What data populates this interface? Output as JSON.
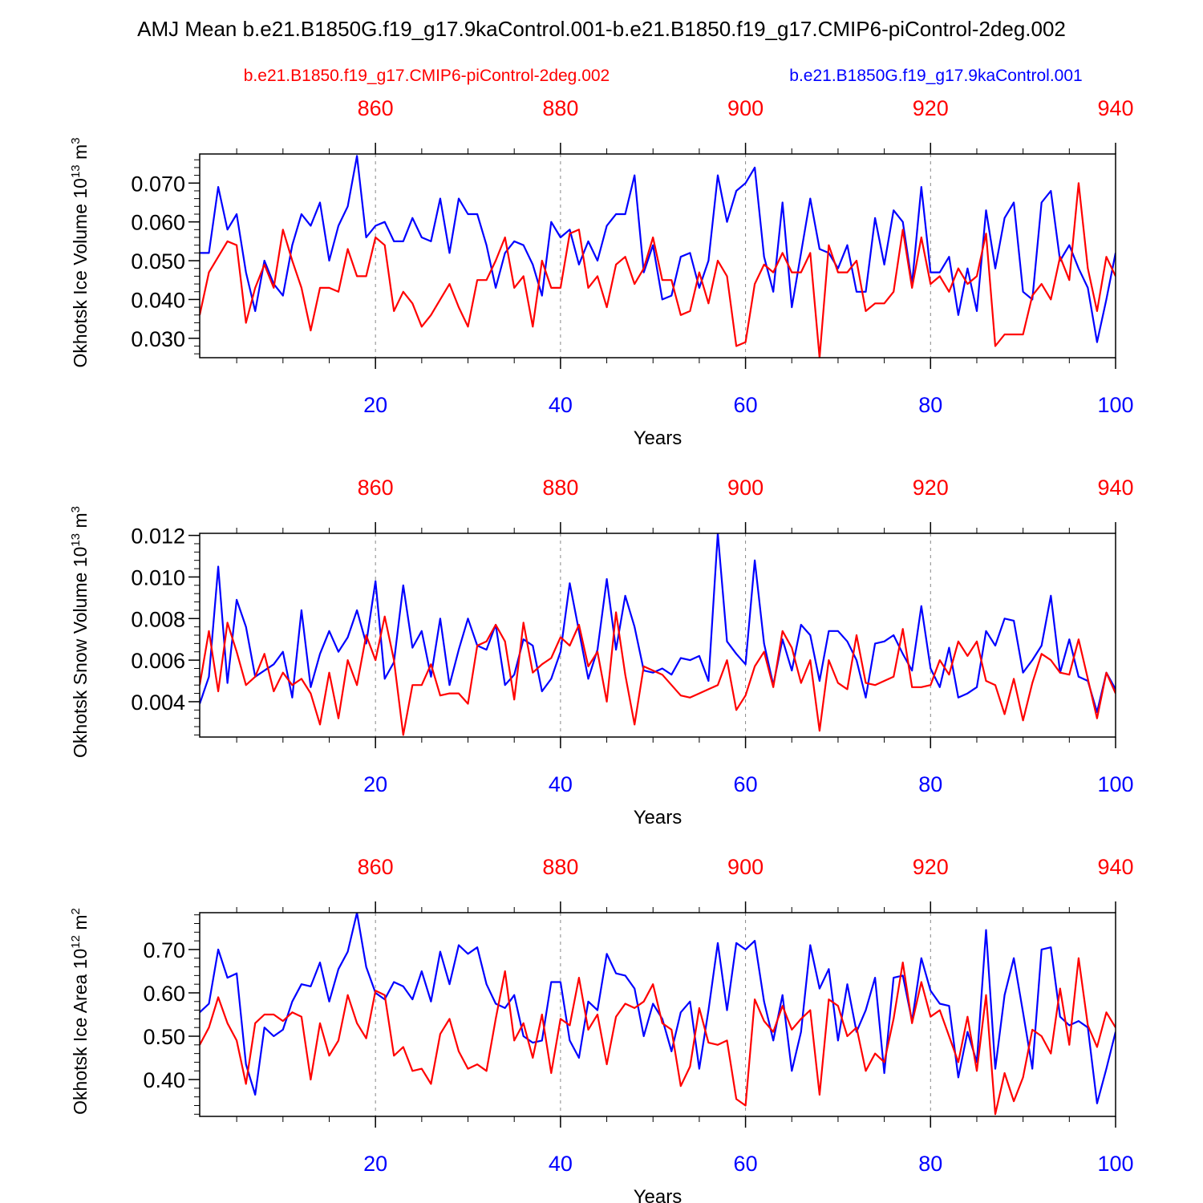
{
  "title": "AMJ Mean b.e21.B1850G.f19_g17.9kaControl.001-b.e21.B1850.f19_g17.CMIP6-piControl-2deg.002",
  "legend": {
    "red_label": "b.e21.B1850.f19_g17.CMIP6-piControl-2deg.002",
    "blue_label": "b.e21.B1850G.f19_g17.9kaControl.001"
  },
  "colors": {
    "red": "#ff0000",
    "blue": "#0000ff",
    "axis": "#000000",
    "grid": "#888888"
  },
  "chart_data": [
    {
      "type": "line",
      "id": "ice-volume",
      "ylabel": "Okhotsk Ice Volume 10",
      "ylabel_exp": "13",
      "ylabel_unit": " m",
      "ylabel_unit_exp": "3",
      "xlabel": "Years",
      "xlim": [
        1,
        100
      ],
      "ylim": [
        0.025,
        0.0775
      ],
      "yticks": [
        0.03,
        0.04,
        0.05,
        0.06,
        0.07
      ],
      "ytick_labels": [
        "0.030",
        "0.040",
        "0.050",
        "0.060",
        "0.070"
      ],
      "yminor_step": 0.002,
      "xticks": [
        20,
        40,
        60,
        80,
        100
      ],
      "xtick_labels": [
        "20",
        "40",
        "60",
        "80",
        "100"
      ],
      "top_xticks": [
        860,
        880,
        900,
        920,
        940
      ],
      "top_xtick_labels": [
        "860",
        "880",
        "900",
        "920",
        "940"
      ],
      "top_offset": 840,
      "series": [
        {
          "name": "b.e21.B1850G.f19_g17.9kaControl.001",
          "color": "blue",
          "values": [
            0.052,
            0.052,
            0.069,
            0.058,
            0.062,
            0.047,
            0.037,
            0.05,
            0.044,
            0.041,
            0.054,
            0.062,
            0.059,
            0.065,
            0.05,
            0.059,
            0.064,
            0.077,
            0.056,
            0.059,
            0.06,
            0.055,
            0.055,
            0.061,
            0.056,
            0.055,
            0.066,
            0.052,
            0.066,
            0.062,
            0.062,
            0.054,
            0.043,
            0.052,
            0.055,
            0.054,
            0.049,
            0.041,
            0.06,
            0.056,
            0.058,
            0.049,
            0.055,
            0.05,
            0.059,
            0.062,
            0.062,
            0.072,
            0.047,
            0.054,
            0.04,
            0.041,
            0.051,
            0.052,
            0.043,
            0.05,
            0.072,
            0.06,
            0.068,
            0.07,
            0.074,
            0.051,
            0.042,
            0.065,
            0.038,
            0.052,
            0.066,
            0.053,
            0.052,
            0.048,
            0.054,
            0.042,
            0.042,
            0.061,
            0.049,
            0.063,
            0.06,
            0.044,
            0.069,
            0.047,
            0.047,
            0.051,
            0.036,
            0.048,
            0.037,
            0.063,
            0.048,
            0.061,
            0.065,
            0.042,
            0.04,
            0.065,
            0.068,
            0.05,
            0.054,
            0.048,
            0.043,
            0.029,
            0.04,
            0.052
          ]
        },
        {
          "name": "b.e21.B1850.f19_g17.CMIP6-piControl-2deg.002",
          "color": "red",
          "values": [
            0.036,
            0.047,
            0.051,
            0.055,
            0.054,
            0.034,
            0.043,
            0.049,
            0.043,
            0.058,
            0.05,
            0.043,
            0.032,
            0.043,
            0.043,
            0.042,
            0.053,
            0.046,
            0.046,
            0.056,
            0.054,
            0.037,
            0.042,
            0.039,
            0.033,
            0.036,
            0.04,
            0.044,
            0.038,
            0.033,
            0.045,
            0.045,
            0.05,
            0.056,
            0.043,
            0.046,
            0.033,
            0.05,
            0.043,
            0.043,
            0.057,
            0.058,
            0.043,
            0.046,
            0.038,
            0.049,
            0.051,
            0.044,
            0.048,
            0.056,
            0.045,
            0.045,
            0.036,
            0.037,
            0.047,
            0.039,
            0.05,
            0.046,
            0.028,
            0.029,
            0.044,
            0.049,
            0.047,
            0.052,
            0.047,
            0.047,
            0.052,
            0.025,
            0.054,
            0.047,
            0.047,
            0.05,
            0.037,
            0.039,
            0.039,
            0.042,
            0.058,
            0.043,
            0.056,
            0.044,
            0.046,
            0.042,
            0.048,
            0.044,
            0.046,
            0.057,
            0.028,
            0.031,
            0.031,
            0.031,
            0.041,
            0.044,
            0.04,
            0.051,
            0.045,
            0.07,
            0.048,
            0.037,
            0.051,
            0.046
          ]
        }
      ]
    },
    {
      "type": "line",
      "id": "snow-volume",
      "ylabel": "Okhotsk Snow Volume 10",
      "ylabel_exp": "13",
      "ylabel_unit": " m",
      "ylabel_unit_exp": "3",
      "xlabel": "Years",
      "xlim": [
        1,
        100
      ],
      "ylim": [
        0.0023,
        0.0121
      ],
      "yticks": [
        0.004,
        0.006,
        0.008,
        0.01,
        0.012
      ],
      "ytick_labels": [
        "0.004",
        "0.006",
        "0.008",
        "0.010",
        "0.012"
      ],
      "yminor_step": 0.0004,
      "xticks": [
        20,
        40,
        60,
        80,
        100
      ],
      "xtick_labels": [
        "20",
        "40",
        "60",
        "80",
        "100"
      ],
      "top_xticks": [
        860,
        880,
        900,
        920,
        940
      ],
      "top_xtick_labels": [
        "860",
        "880",
        "900",
        "920",
        "940"
      ],
      "top_offset": 840,
      "series": [
        {
          "name": "b.e21.B1850G.f19_g17.9kaControl.001",
          "color": "blue",
          "values": [
            0.0039,
            0.0052,
            0.0105,
            0.0049,
            0.0089,
            0.0076,
            0.0052,
            0.0055,
            0.0058,
            0.0064,
            0.0042,
            0.0084,
            0.0047,
            0.0063,
            0.0074,
            0.0064,
            0.0071,
            0.0084,
            0.0068,
            0.0098,
            0.0051,
            0.0059,
            0.0096,
            0.0066,
            0.0074,
            0.0052,
            0.008,
            0.0048,
            0.0065,
            0.008,
            0.0067,
            0.0065,
            0.0077,
            0.0048,
            0.0053,
            0.007,
            0.0067,
            0.0045,
            0.0051,
            0.0064,
            0.0097,
            0.0074,
            0.0051,
            0.0065,
            0.0099,
            0.0065,
            0.0091,
            0.0076,
            0.0055,
            0.0054,
            0.0056,
            0.0053,
            0.0061,
            0.006,
            0.0062,
            0.005,
            0.0121,
            0.0069,
            0.0063,
            0.0058,
            0.0108,
            0.0068,
            0.0048,
            0.007,
            0.0055,
            0.0077,
            0.0072,
            0.005,
            0.0074,
            0.0074,
            0.0069,
            0.006,
            0.0042,
            0.0068,
            0.0069,
            0.0072,
            0.0063,
            0.0055,
            0.0086,
            0.0056,
            0.0047,
            0.0066,
            0.0042,
            0.0044,
            0.0047,
            0.0074,
            0.0067,
            0.008,
            0.0079,
            0.0054,
            0.006,
            0.0067,
            0.0091,
            0.0054,
            0.007,
            0.0052,
            0.005,
            0.0035,
            0.0054,
            0.0046
          ]
        },
        {
          "name": "b.e21.B1850.f19_g17.CMIP6-piControl-2deg.002",
          "color": "red",
          "values": [
            0.0048,
            0.0074,
            0.0045,
            0.0078,
            0.0064,
            0.0048,
            0.0052,
            0.0063,
            0.0045,
            0.0054,
            0.0048,
            0.0051,
            0.0044,
            0.0029,
            0.0054,
            0.0032,
            0.006,
            0.0048,
            0.0072,
            0.006,
            0.0081,
            0.006,
            0.0024,
            0.0048,
            0.0048,
            0.0058,
            0.0043,
            0.0044,
            0.0044,
            0.0039,
            0.0067,
            0.0069,
            0.0077,
            0.0069,
            0.0041,
            0.0078,
            0.0054,
            0.0058,
            0.0061,
            0.0071,
            0.0067,
            0.0077,
            0.0057,
            0.0064,
            0.004,
            0.0083,
            0.0053,
            0.0029,
            0.0057,
            0.0055,
            0.0053,
            0.0048,
            0.0043,
            0.0042,
            0.0044,
            0.0046,
            0.0048,
            0.006,
            0.0036,
            0.0043,
            0.0057,
            0.0064,
            0.0047,
            0.0074,
            0.0066,
            0.0049,
            0.006,
            0.0026,
            0.006,
            0.0049,
            0.0046,
            0.0072,
            0.0049,
            0.0048,
            0.005,
            0.0052,
            0.0075,
            0.0047,
            0.0047,
            0.0048,
            0.006,
            0.0053,
            0.0069,
            0.0062,
            0.0069,
            0.005,
            0.0048,
            0.0034,
            0.0051,
            0.0031,
            0.0049,
            0.0063,
            0.006,
            0.0054,
            0.0053,
            0.007,
            0.0051,
            0.0032,
            0.0054,
            0.0044
          ]
        }
      ]
    },
    {
      "type": "line",
      "id": "ice-area",
      "ylabel": "Okhotsk Ice Area 10",
      "ylabel_exp": "12",
      "ylabel_unit": " m",
      "ylabel_unit_exp": "2",
      "xlabel": "Years",
      "xlim": [
        1,
        100
      ],
      "ylim": [
        0.315,
        0.785
      ],
      "yticks": [
        0.4,
        0.5,
        0.6,
        0.7
      ],
      "ytick_labels": [
        "0.40",
        "0.50",
        "0.60",
        "0.70"
      ],
      "yminor_step": 0.02,
      "xticks": [
        20,
        40,
        60,
        80,
        100
      ],
      "xtick_labels": [
        "20",
        "40",
        "60",
        "80",
        "100"
      ],
      "top_xticks": [
        860,
        880,
        900,
        920,
        940
      ],
      "top_xtick_labels": [
        "860",
        "880",
        "900",
        "920",
        "940"
      ],
      "top_offset": 840,
      "series": [
        {
          "name": "b.e21.B1850G.f19_g17.9kaControl.001",
          "color": "blue",
          "values": [
            0.555,
            0.575,
            0.7,
            0.635,
            0.645,
            0.435,
            0.365,
            0.52,
            0.5,
            0.515,
            0.58,
            0.62,
            0.615,
            0.67,
            0.58,
            0.655,
            0.695,
            0.785,
            0.66,
            0.6,
            0.585,
            0.625,
            0.615,
            0.585,
            0.65,
            0.58,
            0.695,
            0.62,
            0.71,
            0.69,
            0.705,
            0.62,
            0.575,
            0.565,
            0.595,
            0.5,
            0.485,
            0.49,
            0.625,
            0.625,
            0.49,
            0.45,
            0.58,
            0.56,
            0.69,
            0.645,
            0.64,
            0.61,
            0.5,
            0.575,
            0.54,
            0.465,
            0.555,
            0.58,
            0.425,
            0.56,
            0.715,
            0.56,
            0.715,
            0.7,
            0.72,
            0.58,
            0.49,
            0.595,
            0.42,
            0.51,
            0.71,
            0.61,
            0.655,
            0.49,
            0.62,
            0.51,
            0.56,
            0.635,
            0.415,
            0.635,
            0.64,
            0.535,
            0.68,
            0.605,
            0.575,
            0.57,
            0.405,
            0.51,
            0.44,
            0.745,
            0.425,
            0.595,
            0.68,
            0.555,
            0.425,
            0.7,
            0.705,
            0.545,
            0.525,
            0.535,
            0.52,
            0.345,
            0.425,
            0.51
          ]
        },
        {
          "name": "b.e21.B1850.f19_g17.CMIP6-piControl-2deg.002",
          "color": "red",
          "values": [
            0.48,
            0.52,
            0.59,
            0.53,
            0.49,
            0.39,
            0.53,
            0.55,
            0.55,
            0.535,
            0.555,
            0.545,
            0.4,
            0.53,
            0.455,
            0.49,
            0.595,
            0.53,
            0.495,
            0.605,
            0.595,
            0.455,
            0.475,
            0.42,
            0.425,
            0.39,
            0.505,
            0.54,
            0.465,
            0.425,
            0.435,
            0.42,
            0.54,
            0.65,
            0.49,
            0.53,
            0.45,
            0.55,
            0.415,
            0.54,
            0.525,
            0.635,
            0.515,
            0.55,
            0.435,
            0.545,
            0.575,
            0.565,
            0.58,
            0.62,
            0.53,
            0.515,
            0.385,
            0.43,
            0.565,
            0.485,
            0.48,
            0.49,
            0.355,
            0.34,
            0.585,
            0.535,
            0.51,
            0.57,
            0.515,
            0.54,
            0.56,
            0.365,
            0.585,
            0.57,
            0.5,
            0.52,
            0.42,
            0.46,
            0.44,
            0.54,
            0.67,
            0.53,
            0.625,
            0.545,
            0.56,
            0.5,
            0.44,
            0.545,
            0.42,
            0.595,
            0.32,
            0.415,
            0.35,
            0.405,
            0.515,
            0.5,
            0.46,
            0.61,
            0.48,
            0.68,
            0.525,
            0.475,
            0.555,
            0.52
          ]
        }
      ]
    }
  ]
}
